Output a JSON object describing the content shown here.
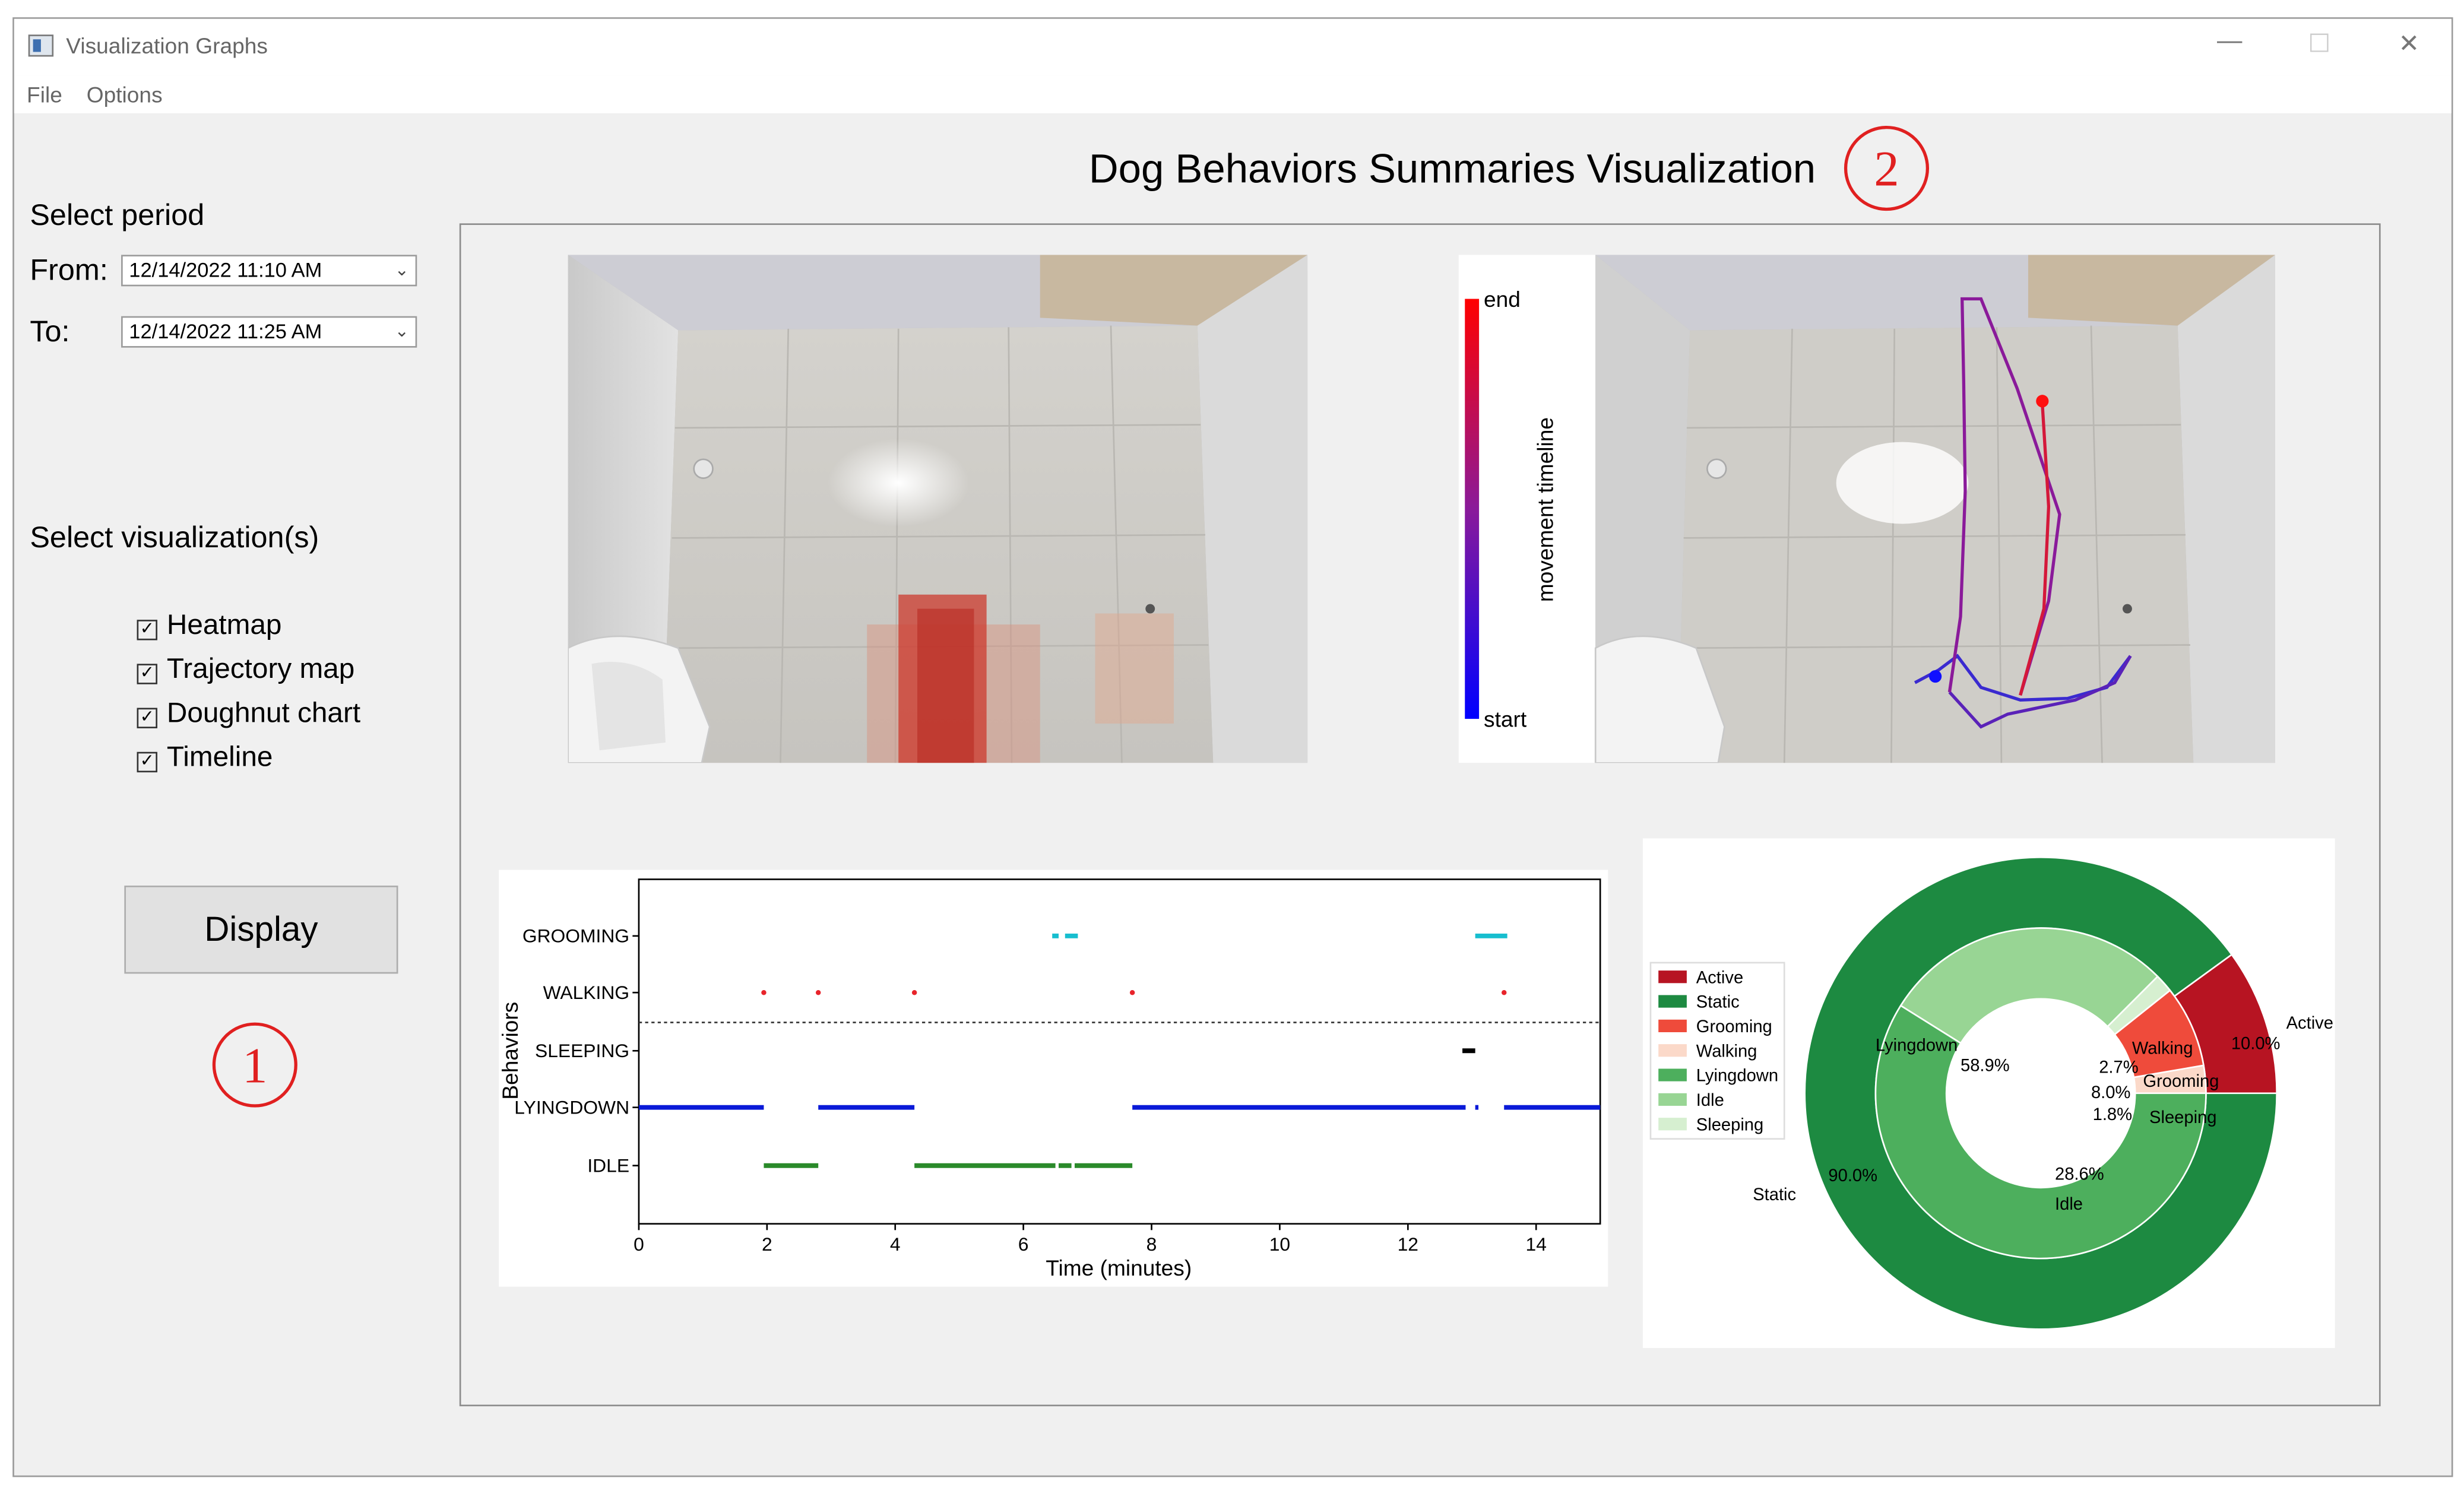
{
  "window": {
    "title": "Visualization Graphs",
    "minimize": "—",
    "maximize": "☐",
    "close": "✕"
  },
  "menu": {
    "file": "File",
    "options": "Options"
  },
  "sidebar": {
    "period_label": "Select period",
    "from_label": "From:",
    "from_value": "12/14/2022 11:10 AM",
    "to_label": "To:",
    "to_value": "12/14/2022 11:25 AM",
    "viz_label": "Select visualization(s)",
    "options": [
      {
        "label": "Heatmap",
        "checked": true
      },
      {
        "label": "Trajectory map",
        "checked": true
      },
      {
        "label": "Doughnut chart",
        "checked": true
      },
      {
        "label": "Timeline",
        "checked": true
      }
    ],
    "display_button": "Display",
    "annotation": "1"
  },
  "main": {
    "title": "Dog Behaviors Summaries Visualization",
    "annotation": "2"
  },
  "trajectory": {
    "colorbar_end": "end",
    "colorbar_start": "start",
    "colorbar_label": "movement timeline"
  },
  "colors": {
    "accent": "#e02020",
    "walking": "#e8242b",
    "grooming": "#17becf",
    "sleeping": "#000000",
    "lyingdown": "#0a1ad8",
    "idle": "#2a8a2a"
  },
  "chart_data": [
    {
      "type": "timeline",
      "ylabel": "Behaviors",
      "xlabel": "Time (minutes)",
      "xlim": [
        0,
        15
      ],
      "xticks": [
        0,
        2,
        4,
        6,
        8,
        10,
        12,
        14
      ],
      "categories": [
        "GROOMING",
        "WALKING",
        "SLEEPING",
        "LYINGDOWN",
        "IDLE"
      ],
      "segments": {
        "GROOMING": [
          [
            6.45,
            6.55
          ],
          [
            6.65,
            6.85
          ],
          [
            13.05,
            13.55
          ]
        ],
        "WALKING": [
          [
            1.95,
            1.95
          ],
          [
            2.8,
            2.8
          ],
          [
            4.3,
            4.3
          ],
          [
            7.7,
            7.7
          ],
          [
            13.5,
            13.5
          ]
        ],
        "SLEEPING": [
          [
            12.85,
            13.05
          ]
        ],
        "LYINGDOWN": [
          [
            0,
            1.95
          ],
          [
            2.8,
            4.3
          ],
          [
            7.7,
            12.9
          ],
          [
            13.05,
            13.1
          ],
          [
            13.5,
            15
          ]
        ],
        "IDLE": [
          [
            1.95,
            2.8
          ],
          [
            4.3,
            6.5
          ],
          [
            6.55,
            6.75
          ],
          [
            6.8,
            7.7
          ]
        ]
      }
    },
    {
      "type": "doughnut",
      "legend": [
        "Active",
        "Static",
        "Grooming",
        "Walking",
        "Lyingdown",
        "Idle",
        "Sleeping"
      ],
      "outer": [
        {
          "label": "Active",
          "value": 10.0,
          "pct": "10.0%",
          "color": "#b71422"
        },
        {
          "label": "Static",
          "value": 90.0,
          "pct": "90.0%",
          "color": "#1d8a41"
        }
      ],
      "inner": [
        {
          "label": "Walking",
          "value": 2.7,
          "pct": "2.7%",
          "color": "#fbd9c9"
        },
        {
          "label": "Grooming",
          "value": 8.0,
          "pct": "8.0%",
          "color": "#ef4b3b"
        },
        {
          "label": "Sleeping",
          "value": 1.8,
          "pct": "1.8%",
          "color": "#d6efd0"
        },
        {
          "label": "Idle",
          "value": 28.6,
          "pct": "28.6%",
          "color": "#98d594"
        },
        {
          "label": "Lyingdown",
          "value": 58.9,
          "pct": "58.9%",
          "color": "#4daf5d"
        }
      ]
    }
  ]
}
